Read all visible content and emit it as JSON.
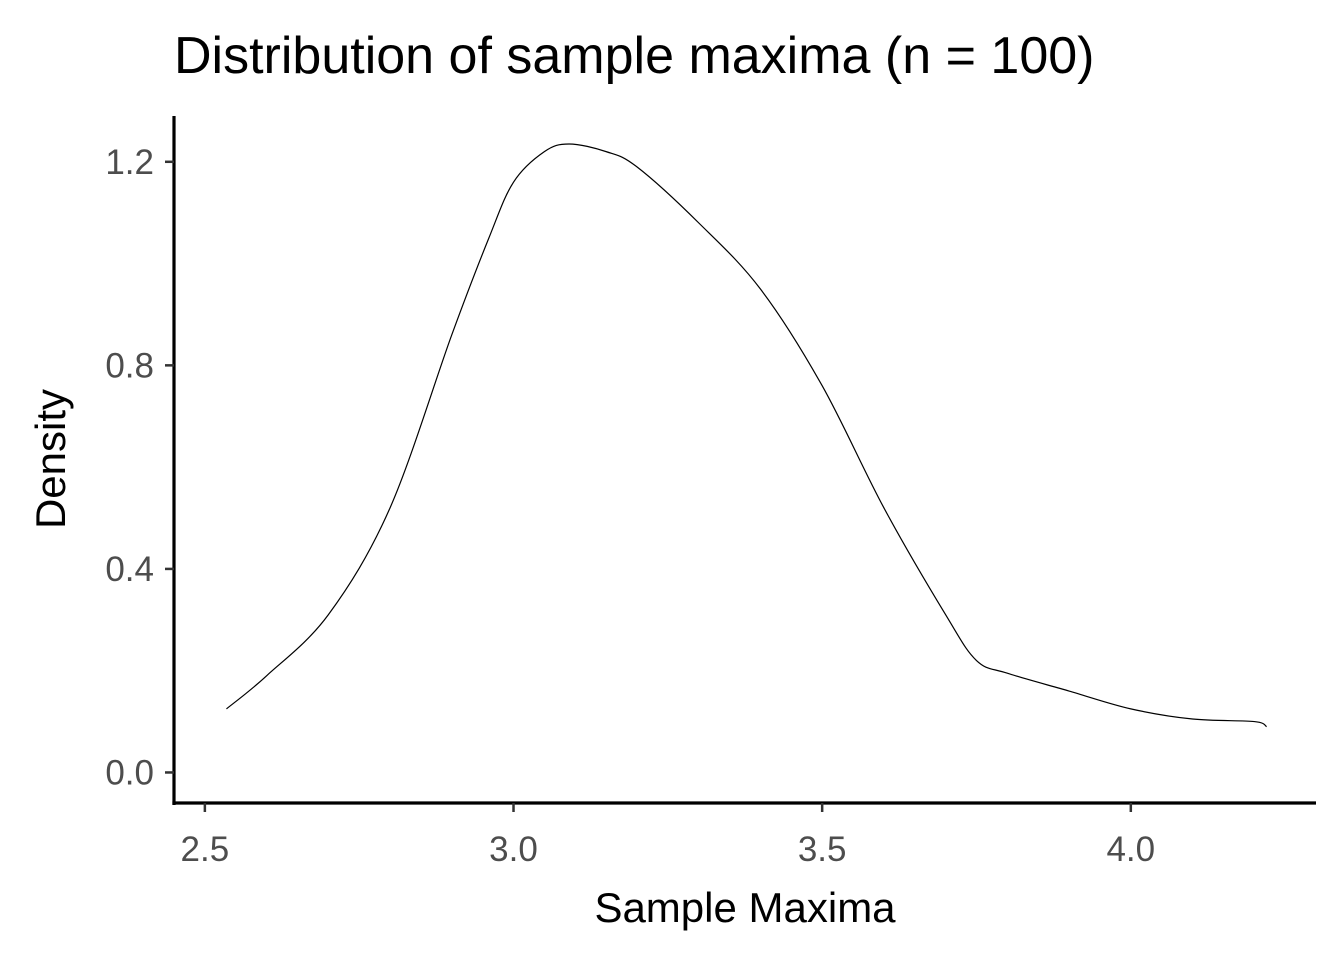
{
  "chart_data": {
    "type": "line",
    "title": "Distribution of sample maxima (n = 100)",
    "xlabel": "Sample Maxima",
    "ylabel": "Density",
    "xlim": [
      2.45,
      4.3
    ],
    "ylim": [
      -0.06,
      1.29
    ],
    "x_ticks": [
      2.5,
      3.0,
      3.5,
      4.0
    ],
    "x_tick_labels": [
      "2.5",
      "3.0",
      "3.5",
      "4.0"
    ],
    "y_ticks": [
      0.0,
      0.4,
      0.8,
      1.2
    ],
    "y_tick_labels": [
      "0.0",
      "0.4",
      "0.8",
      "1.2"
    ],
    "grid": false,
    "legend": "none",
    "line_color": "#000000",
    "series": [
      {
        "x": [
          2.535,
          2.6,
          2.7,
          2.8,
          2.9,
          2.96,
          3.0,
          3.05,
          3.09,
          3.15,
          3.2,
          3.3,
          3.4,
          3.5,
          3.6,
          3.7,
          3.75,
          3.8,
          3.9,
          4.0,
          4.1,
          4.2,
          4.22
        ],
        "y": [
          0.125,
          0.19,
          0.31,
          0.52,
          0.86,
          1.05,
          1.16,
          1.22,
          1.235,
          1.22,
          1.19,
          1.08,
          0.95,
          0.76,
          0.52,
          0.31,
          0.22,
          0.195,
          0.16,
          0.125,
          0.105,
          0.1,
          0.09
        ]
      }
    ]
  }
}
